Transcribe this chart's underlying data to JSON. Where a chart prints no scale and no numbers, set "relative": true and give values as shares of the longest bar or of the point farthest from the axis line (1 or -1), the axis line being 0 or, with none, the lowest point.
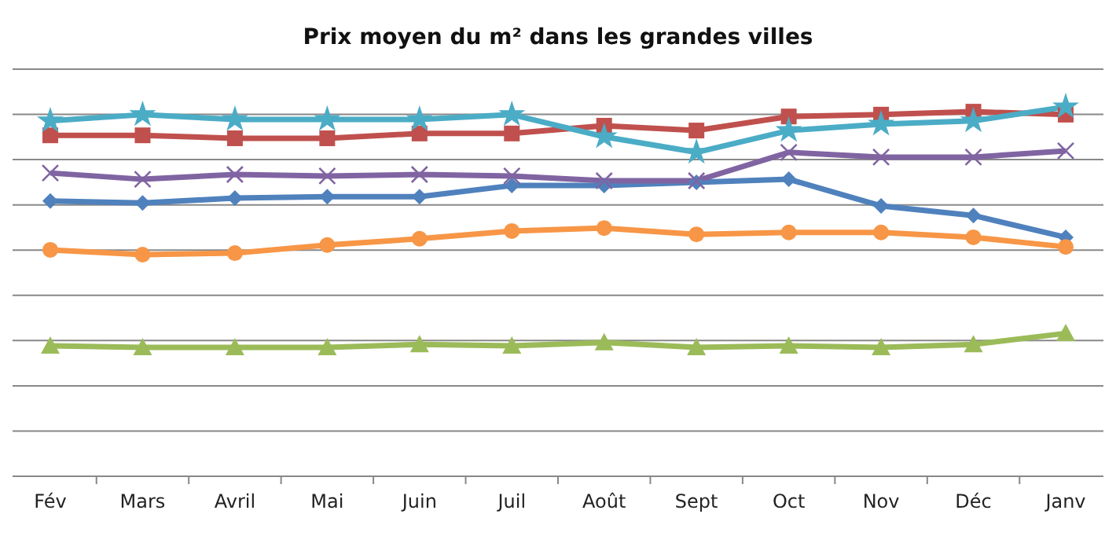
{
  "chart_data": {
    "type": "line",
    "title": "Prix moyen du m² dans les grandes villes",
    "relative": true,
    "grid": "y",
    "categories": [
      "Fév",
      "Mars",
      "Avril",
      "Mai",
      "Juin",
      "Juil",
      "Août",
      "Sept",
      "Oct",
      "Nov",
      "Déc",
      "Janv"
    ],
    "series": [
      {
        "color": "#4f81bd",
        "marker": "diamond",
        "values": [
          0.745,
          0.74,
          0.753,
          0.757,
          0.757,
          0.787,
          0.787,
          0.796,
          0.804,
          0.732,
          0.706,
          0.647
        ]
      },
      {
        "color": "#c0504d",
        "marker": "square",
        "values": [
          0.923,
          0.923,
          0.915,
          0.915,
          0.928,
          0.928,
          0.949,
          0.936,
          0.974,
          0.979,
          0.987,
          0.979
        ]
      },
      {
        "color": "#9bbb59",
        "marker": "triangle",
        "values": [
          0.353,
          0.349,
          0.349,
          0.349,
          0.357,
          0.353,
          0.362,
          0.349,
          0.353,
          0.349,
          0.357,
          0.387
        ]
      },
      {
        "color": "#8064a2",
        "marker": "cross",
        "values": [
          0.821,
          0.804,
          0.817,
          0.813,
          0.817,
          0.813,
          0.8,
          0.8,
          0.877,
          0.864,
          0.864,
          0.881
        ]
      },
      {
        "color": "#4bacc6",
        "marker": "star",
        "values": [
          0.962,
          0.979,
          0.966,
          0.966,
          0.966,
          0.979,
          0.919,
          0.877,
          0.936,
          0.953,
          0.962,
          1
        ]
      },
      {
        "color": "#f79646",
        "marker": "circle",
        "values": [
          0.613,
          0.6,
          0.604,
          0.626,
          0.643,
          0.664,
          0.672,
          0.655,
          0.66,
          0.66,
          0.647,
          0.621
        ]
      }
    ]
  }
}
